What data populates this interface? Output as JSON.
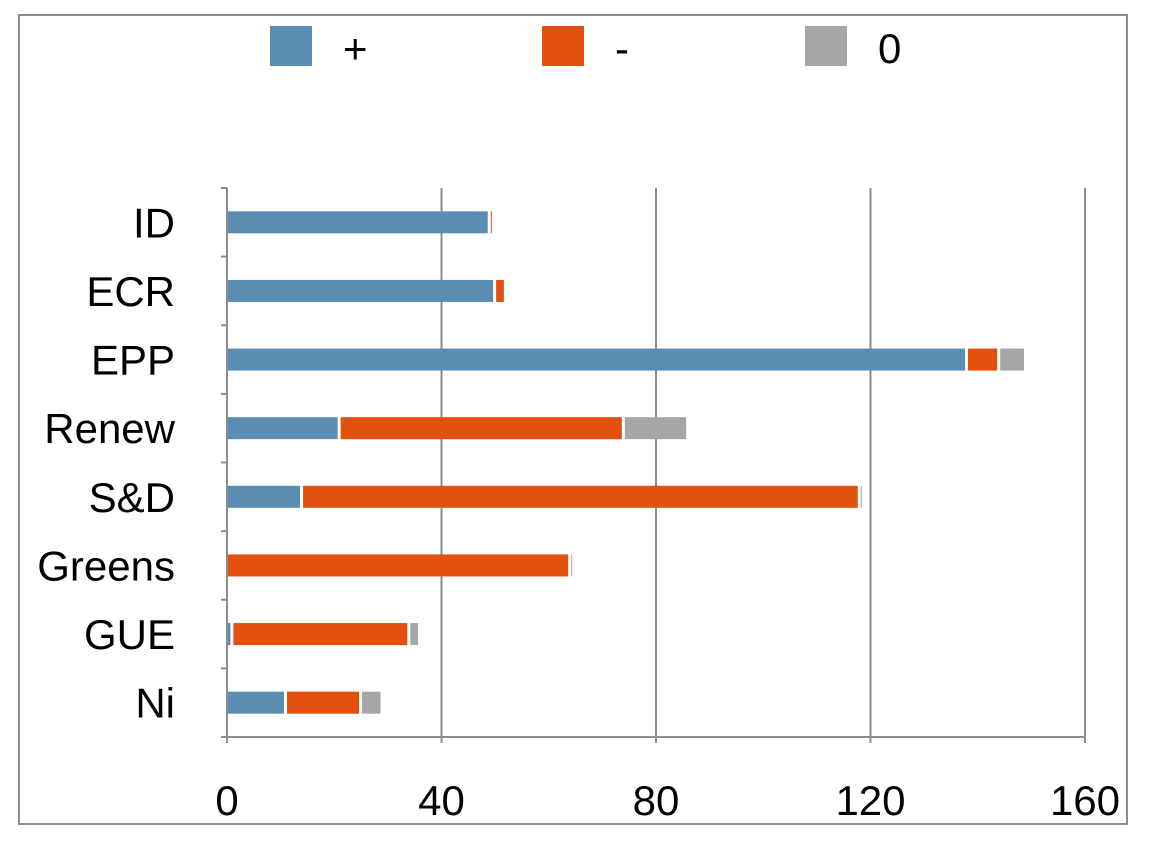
{
  "chart_data": {
    "type": "bar",
    "orientation": "horizontal",
    "stacked": true,
    "categories": [
      "ID",
      "ECR",
      "EPP",
      "Renew",
      "S&D",
      "Greens",
      "GUE",
      "Ni"
    ],
    "series": [
      {
        "name": "+",
        "color": "#5b8db2",
        "values": [
          49,
          50,
          138,
          21,
          14,
          0,
          1,
          11
        ]
      },
      {
        "name": "-",
        "color": "#e2510e",
        "values": [
          0.5,
          2,
          6,
          53,
          104,
          64,
          33,
          14
        ]
      },
      {
        "name": "0",
        "color": "#a6a6a6",
        "values": [
          0,
          0,
          5,
          12,
          0.5,
          0.5,
          2,
          4
        ]
      }
    ],
    "xlim": [
      0,
      160
    ],
    "xticks": [
      "0",
      "40",
      "80",
      "120",
      "160"
    ],
    "grid": true,
    "legend_position": "top"
  }
}
